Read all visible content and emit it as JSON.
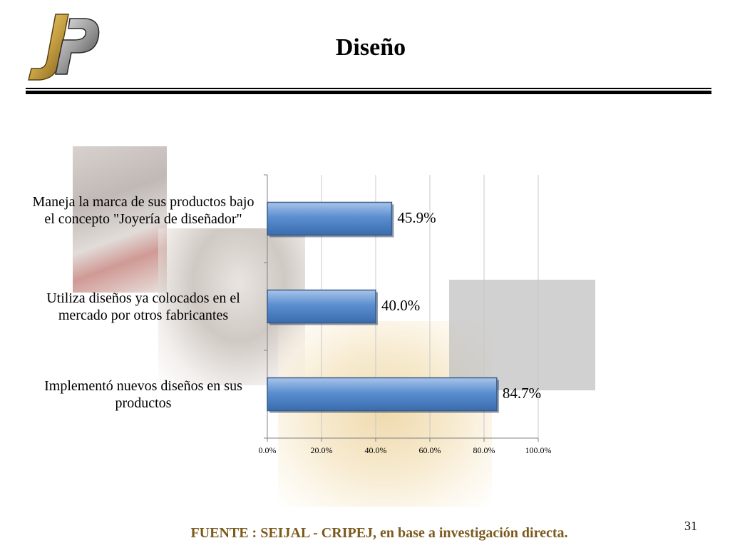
{
  "slide": {
    "title": "Diseño",
    "page_number": "31",
    "source": "FUENTE :  SEIJAL - CRIPEJ,  en base a investigación directa."
  },
  "logo": {
    "icon": "jp-logo-icon",
    "colors": [
      "#c9a245",
      "#8f8f8f",
      "#3a3a3a"
    ]
  },
  "chart_data": {
    "type": "bar",
    "orientation": "horizontal",
    "categories": [
      "Maneja la marca de sus productos bajo el concepto \"Joyería de diseñador\"",
      "Utiliza diseños ya colocados en el mercado por otros fabricantes",
      "Implementó nuevos diseños en sus productos"
    ],
    "values": [
      45.9,
      40.0,
      84.7
    ],
    "value_labels": [
      "45.9%",
      "40.0%",
      "84.7%"
    ],
    "xlim": [
      0,
      100
    ],
    "x_ticks": [
      0,
      20,
      40,
      60,
      80,
      100
    ],
    "x_tick_labels": [
      "0.0%",
      "20.0%",
      "40.0%",
      "60.0%",
      "80.0%",
      "100.0%"
    ],
    "grid": true,
    "legend": "none",
    "bar_color": "#4f81bd",
    "bar_edge_color": "#385d8a"
  }
}
